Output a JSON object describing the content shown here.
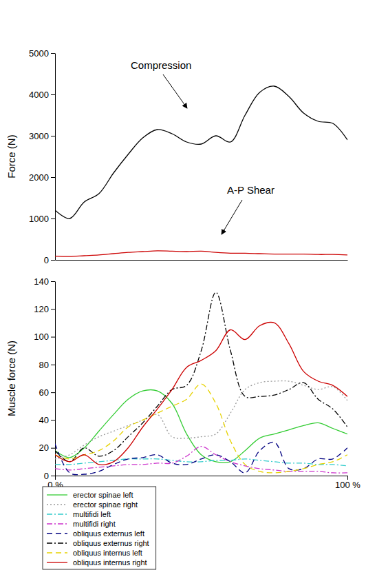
{
  "chart_data": [
    {
      "type": "line",
      "y_label": "Force (N)",
      "x": [
        0,
        5,
        10,
        15,
        20,
        25,
        30,
        35,
        40,
        45,
        50,
        55,
        60,
        65,
        70,
        75,
        80,
        85,
        90,
        95,
        100
      ],
      "xlim": [
        0,
        100
      ],
      "ylim": [
        0,
        5000
      ],
      "yticks": [
        0,
        1000,
        2000,
        3000,
        4000,
        5000
      ],
      "tick_labels": "y",
      "grid": false,
      "annotations": [
        {
          "text": "Compression"
        },
        {
          "text": "A-P Shear"
        }
      ],
      "series": [
        {
          "name": "Compression",
          "color": "#000000",
          "line_style": "solid",
          "values": [
            1200,
            1000,
            1400,
            1600,
            2100,
            2550,
            2950,
            3150,
            3050,
            2850,
            2800,
            3000,
            2850,
            3500,
            4050,
            4200,
            3950,
            3550,
            3350,
            3300,
            2900
          ]
        },
        {
          "name": "A-P Shear",
          "color": "#cc0000",
          "line_style": "solid",
          "values": [
            90,
            80,
            100,
            120,
            150,
            180,
            200,
            220,
            210,
            200,
            210,
            180,
            160,
            160,
            150,
            140,
            140,
            140,
            130,
            130,
            120
          ]
        }
      ]
    },
    {
      "type": "line",
      "y_label": "Muscle force (N)",
      "x": [
        0,
        5,
        10,
        15,
        20,
        25,
        30,
        35,
        40,
        45,
        50,
        55,
        60,
        65,
        70,
        75,
        80,
        85,
        90,
        95,
        100
      ],
      "xlim": [
        0,
        100
      ],
      "xticks": [
        {
          "value": 0,
          "label": "0 %"
        },
        {
          "value": 100,
          "label": "100 %"
        }
      ],
      "ylim": [
        0,
        140
      ],
      "yticks": [
        0,
        20,
        40,
        60,
        80,
        100,
        120,
        140
      ],
      "grid": false,
      "legend": "bottom",
      "series": [
        {
          "name": "erector spinae left",
          "color": "#33cc33",
          "line_style": "solid",
          "values": [
            18,
            13,
            20,
            32,
            44,
            55,
            61,
            61,
            52,
            30,
            15,
            10,
            10,
            18,
            27,
            30,
            33,
            36,
            38,
            34,
            30
          ]
        },
        {
          "name": "erector spinae right",
          "color": "#999999",
          "line_style": "dotted",
          "values": [
            12,
            15,
            22,
            28,
            32,
            36,
            40,
            44,
            28,
            27,
            28,
            30,
            45,
            62,
            67,
            68,
            68,
            65,
            62,
            64,
            54
          ]
        },
        {
          "name": "multifidi left",
          "color": "#33cccc",
          "line_style": "dashdot",
          "values": [
            8,
            8,
            9,
            10,
            11,
            12,
            12,
            12,
            11,
            10,
            10,
            11,
            11,
            12,
            11,
            10,
            9,
            9,
            8,
            8,
            7
          ]
        },
        {
          "name": "multifidi right",
          "color": "#cc33cc",
          "line_style": "dashdot",
          "values": [
            5,
            4,
            5,
            6,
            7,
            8,
            8,
            9,
            9,
            14,
            21,
            15,
            10,
            7,
            5,
            4,
            3,
            3,
            3,
            2,
            2
          ]
        },
        {
          "name": "obliquus externus left",
          "color": "#000080",
          "line_style": "dashed",
          "values": [
            23,
            2,
            1,
            3,
            8,
            12,
            13,
            15,
            9,
            8,
            12,
            15,
            10,
            2,
            18,
            24,
            5,
            5,
            12,
            12,
            20
          ]
        },
        {
          "name": "obliquus externus right",
          "color": "#000000",
          "line_style": "dashdot",
          "values": [
            18,
            10,
            20,
            14,
            18,
            28,
            38,
            50,
            62,
            65,
            90,
            132,
            90,
            57,
            57,
            58,
            62,
            67,
            55,
            48,
            35
          ]
        },
        {
          "name": "obliquus internus left",
          "color": "#e6d200",
          "line_style": "dashed",
          "values": [
            15,
            12,
            15,
            18,
            25,
            35,
            40,
            45,
            50,
            55,
            66,
            52,
            25,
            8,
            3,
            2,
            3,
            5,
            8,
            10,
            15
          ]
        },
        {
          "name": "obliquus internus right",
          "color": "#cc0000",
          "line_style": "solid",
          "values": [
            15,
            10,
            15,
            8,
            10,
            20,
            35,
            48,
            62,
            78,
            83,
            90,
            105,
            98,
            108,
            110,
            95,
            75,
            68,
            65,
            57
          ]
        }
      ]
    }
  ]
}
